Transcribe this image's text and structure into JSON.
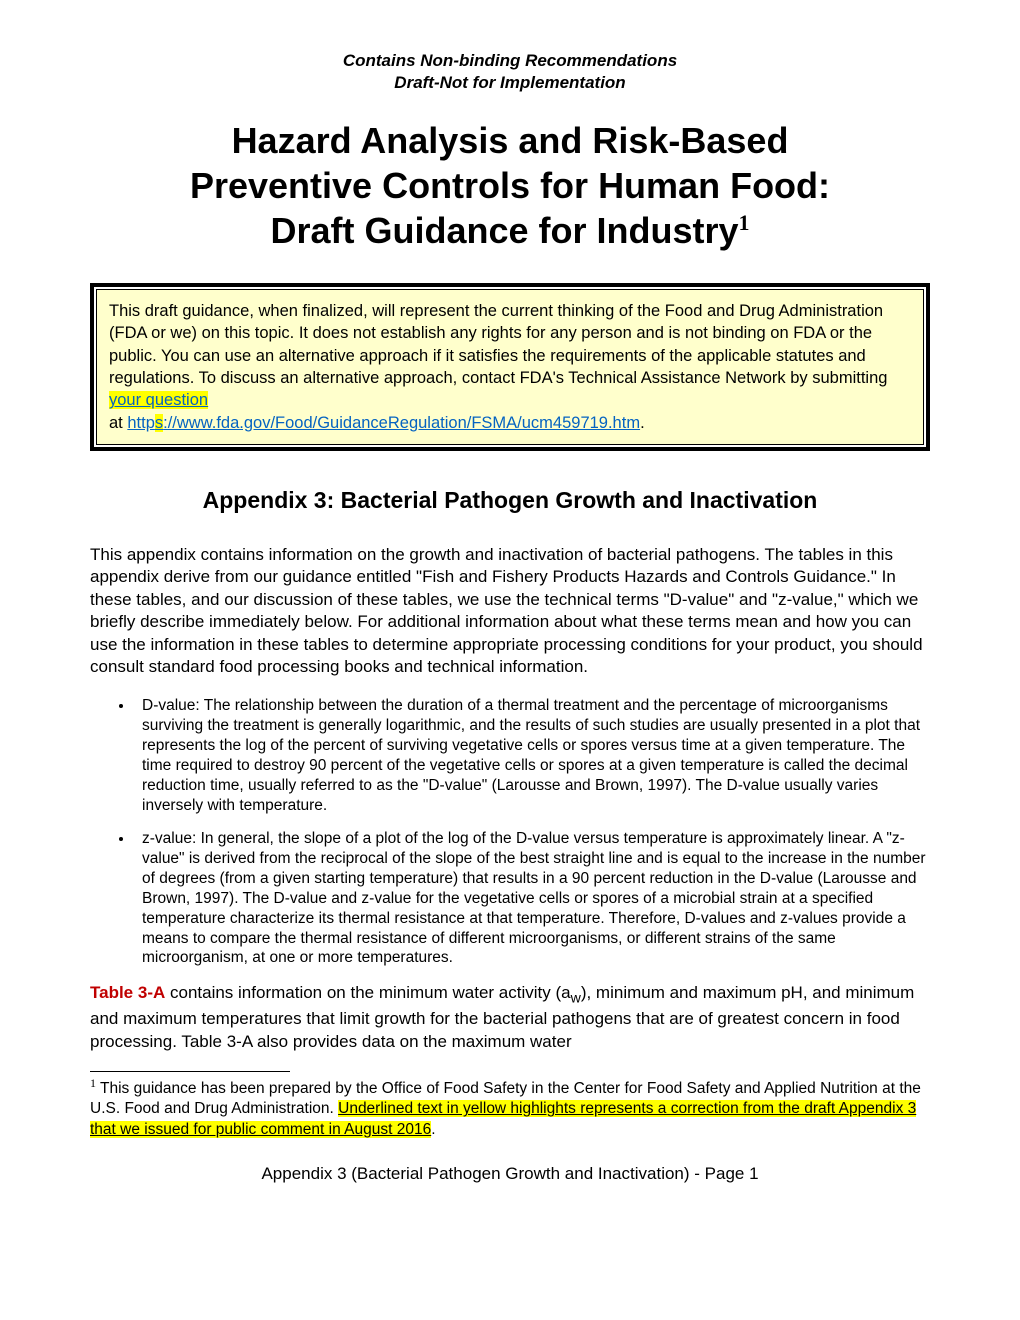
{
  "header": {
    "line1": "Contains Non-binding Recommendations",
    "line2": "Draft-Not for Implementation"
  },
  "title": {
    "line1": "Hazard Analysis and Risk-Based",
    "line2": "Preventive Controls for Human Food:",
    "line3": "Draft Guidance for Industry",
    "sup": "1"
  },
  "notice": {
    "pre_link": "This draft guidance, when finalized, will represent the current thinking of the Food and Drug Administration (FDA or we) on this topic.  It does not establish any rights for any person and is not binding on FDA or the public.  You can use an alternative approach if it satisfies the requirements of the applicable statutes and regulations.  To discuss an alternative approach, contact FDA's Technical Assistance Network by submitting ",
    "link1_text": "your question",
    "between": "at ",
    "link2_pre": "http",
    "link2_hl": "s",
    "link2_post": "://www.fda.gov/Food/GuidanceRegulation/FSMA/ucm459719.htm",
    "after": "."
  },
  "appendix_title": "Appendix 3: Bacterial Pathogen Growth and Inactivation",
  "intro_para": "This appendix contains information on the growth and inactivation of bacterial pathogens. The tables in this appendix derive from our guidance entitled \"Fish and Fishery Products Hazards and Controls Guidance.\"  In these tables, and our discussion of these tables, we use the technical terms \"D-value\" and \"z-value,\" which we briefly describe immediately below. For additional information about what these terms mean and how you can use the information in these tables to determine appropriate processing conditions for your product, you should consult standard food processing books and technical information.",
  "bullets": {
    "d_value": "D-value: The relationship between the duration of a thermal treatment and the percentage of microorganisms surviving the treatment is generally logarithmic, and the results of such studies are usually presented in a plot that represents the log of the percent of surviving vegetative cells or spores versus time at a given temperature.  The time required to destroy 90 percent of the vegetative cells or spores at a given temperature is called the decimal reduction time, usually referred to as the \"D-value\" (Larousse and Brown, 1997).  The D-value usually varies inversely with temperature.",
    "z_value": "z-value: In general, the slope of a plot of the log of the D-value versus temperature is approximately linear.  A \"z-value\" is derived from the reciprocal of the slope of the best straight line and is equal to the increase in the number of degrees (from a given starting temperature) that results in a 90 percent reduction in the D-value (Larousse and Brown, 1997).  The D-value and z-value for the vegetative cells or spores of a microbial strain at a specified temperature characterize its thermal resistance at that temperature.  Therefore, D-values and z-values provide a means to compare the thermal resistance of different microorganisms, or different strains of the same microorganism, at one or more temperatures."
  },
  "table_para": {
    "ref": "Table 3-A",
    "pre_sub": " contains information on the minimum water activity (a",
    "sub": "w",
    "post_sub": "), minimum and maximum pH, and minimum and maximum temperatures that limit  growth for the bacterial pathogens that are of greatest concern in food processing.  Table 3-A also provides data on the maximum water"
  },
  "footnote": {
    "num": "1",
    "pre_hl": " This guidance has been prepared by the Office of Food Safety in the Center for Food Safety and Applied Nutrition at the U.S. Food and Drug Administration. ",
    "hl": "Underlined text in yellow highlights represents a correction from the draft Appendix 3 that we issued for public comment in August 2016",
    "after": "."
  },
  "footer": "Appendix 3 (Bacterial Pathogen Growth and Inactivation) - Page 1",
  "colors": {
    "highlight": "#ffff00",
    "notice_bg": "#ffffcc",
    "link": "#0563c1",
    "table_ref": "#c00000"
  }
}
